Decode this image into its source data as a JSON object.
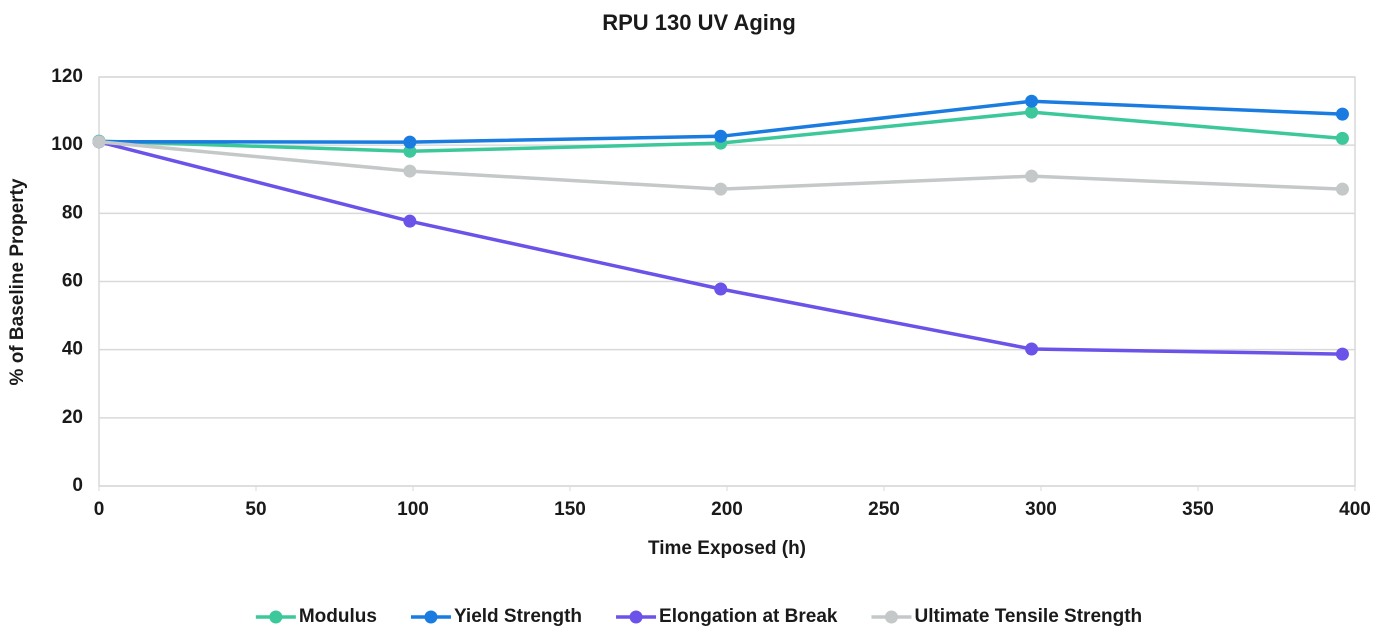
{
  "chart_data": {
    "type": "line",
    "title": "RPU 130 UV Aging",
    "x_label": "Time Exposed (h)",
    "y_label": "% of Baseline Property",
    "x": [
      0,
      99,
      198,
      297,
      396
    ],
    "series": [
      {
        "name": "Modulus",
        "color": "#3cc89a",
        "values": [
          101.2,
          98.2,
          100.6,
          109.7,
          102
        ]
      },
      {
        "name": "Yield Strength",
        "color": "#1a7ce0",
        "values": [
          101,
          100.9,
          102.6,
          112.9,
          109.1
        ]
      },
      {
        "name": "Elongation at Break",
        "color": "#6b52e8",
        "values": [
          101,
          77.7,
          57.8,
          40.2,
          38.7
        ]
      },
      {
        "name": "Ultimate Tensile Strength",
        "color": "#c4c8c8",
        "values": [
          101,
          92.4,
          87.1,
          90.9,
          87.1
        ]
      }
    ],
    "xlim": [
      0,
      400
    ],
    "xticks": [
      0,
      50,
      100,
      150,
      200,
      250,
      300,
      350,
      400
    ],
    "ylim": [
      0,
      120
    ],
    "yticks": [
      0,
      20,
      40,
      60,
      80,
      100,
      120
    ],
    "grid": true,
    "legend": "bottom"
  }
}
